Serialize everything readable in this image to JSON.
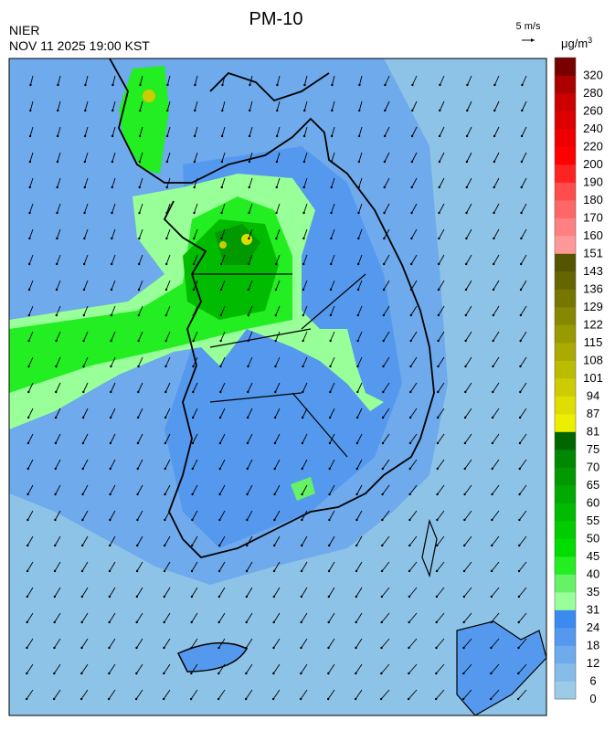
{
  "header": {
    "agency": "NIER",
    "title": "PM-10",
    "timestamp": "NOV 11 2025 19:00 KST"
  },
  "wind_scale": {
    "label": "5 m/s"
  },
  "legend": {
    "unit": "μg/m",
    "unit_exponent": "3",
    "levels": [
      0,
      6,
      12,
      18,
      24,
      31,
      35,
      40,
      45,
      50,
      55,
      60,
      65,
      70,
      75,
      81,
      87,
      94,
      101,
      108,
      115,
      122,
      129,
      136,
      143,
      151,
      160,
      170,
      180,
      190,
      200,
      220,
      240,
      260,
      280,
      320
    ],
    "colors": [
      "#9ccbe8",
      "#86bcea",
      "#6eaaec",
      "#5599ee",
      "#3b8af0",
      "#99ff99",
      "#66f266",
      "#22ee22",
      "#00dd00",
      "#00cc00",
      "#00bb00",
      "#00aa00",
      "#009900",
      "#008800",
      "#006600",
      "#eeee00",
      "#dede00",
      "#cccc00",
      "#bbbb00",
      "#aaaa00",
      "#999900",
      "#888800",
      "#777700",
      "#666600",
      "#555500",
      "#ff9999",
      "#ff8080",
      "#ff6666",
      "#ff4d4d",
      "#ff2222",
      "#ff0000",
      "#ee0000",
      "#dd0000",
      "#cc0000",
      "#aa0000",
      "#770000"
    ]
  }
}
